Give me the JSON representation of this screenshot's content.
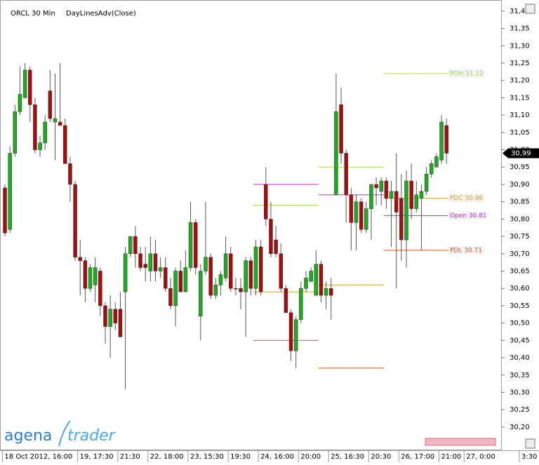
{
  "chart_data": {
    "type": "candlestick",
    "title": "ORCL 30 Min",
    "indicator": "DayLinesAdv(Close)",
    "categories": [
      "18 Oct 2012, 16:00",
      null,
      null,
      null,
      null,
      null,
      null,
      null,
      null,
      null,
      null,
      null,
      null,
      null,
      null,
      "19, 17:30",
      null,
      null,
      null,
      null,
      null,
      null,
      null,
      "21:30",
      null,
      null,
      null,
      null,
      null,
      "22, 18:00",
      null,
      null,
      null,
      null,
      null,
      null,
      null,
      "23, 15:30",
      null,
      null,
      null,
      null,
      null,
      null,
      null,
      "19:30",
      null,
      null,
      null,
      null,
      null,
      "24, 16:00",
      null,
      null,
      null,
      null,
      null,
      null,
      null,
      "20:00",
      null,
      null,
      null,
      null,
      null,
      "25, 16:30",
      null,
      null,
      null,
      null,
      null,
      null,
      null,
      "20:30",
      null,
      null,
      null,
      null,
      null,
      "26, 17:00",
      null,
      null,
      null,
      null,
      null,
      null,
      null,
      "21:00",
      null,
      null,
      null,
      null,
      "27, 0:00",
      null,
      null,
      null,
      null,
      null,
      null,
      null,
      null,
      null,
      null,
      "3:30"
    ],
    "open": [
      30.89,
      30.77,
      30.99,
      31.11,
      31.15,
      31.23,
      31.13,
      31.0,
      31.02,
      31.17,
      31.08,
      31.08,
      31.07,
      30.96,
      30.9,
      30.69,
      30.68,
      30.6,
      30.61,
      30.65,
      30.55,
      30.49,
      30.54,
      30.54,
      30.59,
      30.7,
      30.75,
      30.7,
      30.67,
      30.65,
      30.7,
      30.65,
      30.66,
      30.6,
      30.55,
      30.65,
      30.59,
      30.66,
      30.79,
      30.52,
      30.65,
      30.69,
      30.58,
      30.61,
      30.63,
      30.7,
      30.6,
      30.6,
      30.59,
      30.68,
      30.6,
      30.72,
      30.9,
      30.8,
      30.74,
      30.7,
      30.6,
      30.53,
      30.42,
      30.51,
      30.6,
      30.62,
      30.58,
      30.67,
      30.58,
      30.6,
      30.87,
      31.13,
      30.99,
      30.87,
      30.79,
      30.85,
      30.77,
      30.83,
      30.9,
      30.88,
      30.91,
      30.86,
      30.88,
      30.86,
      30.74,
      30.91,
      30.83,
      30.86,
      30.88,
      30.93,
      30.95,
      30.97,
      31.07,
      null,
      null,
      null,
      null,
      null,
      null,
      null,
      null,
      null,
      null,
      null,
      null,
      null,
      null,
      null
    ],
    "high": [
      30.9,
      31.01,
      31.13,
      31.24,
      31.25,
      31.24,
      31.15,
      31.04,
      31.1,
      31.23,
      31.22,
      31.25,
      31.09,
      30.98,
      30.91,
      30.74,
      30.69,
      30.67,
      30.69,
      30.66,
      30.56,
      30.58,
      30.56,
      30.59,
      30.72,
      30.75,
      30.78,
      30.72,
      30.72,
      30.75,
      30.74,
      30.69,
      30.69,
      30.63,
      30.66,
      30.68,
      30.71,
      30.85,
      30.8,
      30.67,
      30.85,
      30.7,
      30.63,
      30.65,
      30.75,
      30.72,
      30.63,
      30.63,
      30.69,
      30.69,
      30.74,
      30.74,
      30.95,
      30.85,
      30.78,
      30.73,
      30.61,
      30.54,
      30.52,
      30.62,
      30.65,
      30.66,
      30.71,
      30.68,
      30.62,
      30.63,
      31.22,
      31.18,
      31.0,
      30.89,
      30.87,
      30.86,
      30.85,
      30.9,
      30.92,
      30.92,
      30.92,
      30.91,
      30.99,
      30.93,
      30.94,
      30.96,
      30.91,
      30.9,
      30.95,
      30.97,
      30.99,
      31.1,
      31.09,
      null,
      null,
      null,
      null,
      null,
      null,
      null,
      null,
      null,
      null,
      null,
      null,
      null,
      null,
      null
    ],
    "low": [
      30.75,
      30.76,
      30.98,
      31.1,
      31.15,
      31.08,
      30.99,
      30.98,
      31.0,
      31.08,
      30.97,
      31.07,
      30.96,
      30.85,
      30.68,
      30.58,
      30.56,
      30.59,
      30.56,
      30.52,
      30.44,
      30.4,
      30.48,
      30.46,
      30.31,
      30.69,
      30.66,
      30.65,
      30.62,
      30.62,
      30.62,
      30.63,
      30.59,
      30.54,
      30.49,
      30.59,
      30.59,
      30.65,
      30.64,
      30.45,
      30.64,
      30.57,
      30.57,
      30.58,
      30.62,
      30.59,
      30.58,
      30.54,
      30.46,
      30.58,
      30.58,
      30.58,
      30.78,
      30.69,
      30.69,
      30.59,
      30.53,
      30.39,
      30.37,
      30.5,
      30.59,
      30.62,
      30.58,
      30.56,
      30.54,
      30.51,
      30.87,
      30.96,
      30.79,
      30.71,
      30.71,
      30.76,
      30.76,
      30.74,
      30.84,
      30.84,
      30.83,
      30.72,
      30.6,
      30.68,
      30.66,
      30.8,
      30.82,
      30.71,
      30.87,
      30.92,
      30.95,
      30.96,
      30.96,
      null,
      null,
      null,
      null,
      null,
      null,
      null,
      null,
      null,
      null,
      null,
      null,
      null,
      null,
      null
    ],
    "close": [
      30.76,
      30.99,
      31.11,
      31.16,
      31.23,
      31.13,
      31.0,
      31.02,
      31.08,
      31.09,
      31.09,
      31.07,
      30.96,
      30.9,
      30.69,
      30.68,
      30.6,
      30.66,
      30.66,
      30.55,
      30.49,
      30.54,
      30.5,
      30.46,
      30.7,
      30.75,
      30.7,
      30.66,
      30.66,
      30.7,
      30.65,
      30.66,
      30.6,
      30.55,
      30.65,
      30.59,
      30.66,
      30.79,
      30.66,
      30.65,
      30.69,
      30.58,
      30.61,
      30.64,
      30.7,
      30.6,
      30.6,
      30.59,
      30.68,
      30.6,
      30.72,
      30.59,
      30.8,
      30.7,
      30.7,
      30.6,
      30.53,
      30.42,
      30.51,
      30.6,
      30.63,
      30.65,
      30.67,
      30.58,
      30.6,
      30.58,
      31.11,
      30.99,
      30.87,
      30.79,
      30.85,
      30.77,
      30.83,
      30.9,
      30.89,
      30.91,
      30.86,
      30.88,
      30.82,
      30.74,
      30.91,
      30.83,
      30.87,
      30.88,
      30.93,
      30.96,
      30.98,
      31.08,
      30.99,
      null,
      null,
      null,
      null,
      null,
      null,
      null,
      null,
      null,
      null,
      null,
      null,
      null,
      null,
      null
    ],
    "up_color": "#1faa1f",
    "down_color": "#a30f0f",
    "levels": [
      {
        "label": "PDH 31.22",
        "color": "#a2dc4a",
        "values": [
          null,
          null,
          null,
          null,
          null,
          null,
          null,
          null,
          null,
          null,
          null,
          null,
          null,
          null,
          null,
          null,
          null,
          null,
          null,
          null,
          null,
          null,
          null,
          null,
          null,
          null,
          null,
          null,
          null,
          null,
          null,
          null,
          null,
          null,
          null,
          null,
          null,
          null,
          null,
          null,
          null,
          null,
          null,
          null,
          null,
          null,
          null,
          null,
          null,
          null,
          30.84,
          30.84,
          30.84,
          30.84,
          30.84,
          30.84,
          30.84,
          30.84,
          30.84,
          30.84,
          30.84,
          30.84,
          30.84,
          30.95,
          30.95,
          30.95,
          30.95,
          30.95,
          30.95,
          30.95,
          30.95,
          30.95,
          30.95,
          30.95,
          30.95,
          30.95,
          31.22,
          31.22,
          31.22,
          31.22,
          31.22,
          31.22,
          31.22,
          31.22,
          31.22,
          31.22,
          31.22,
          31.22,
          31.22,
          null,
          null,
          null,
          null,
          null,
          null,
          null,
          null,
          null,
          null,
          null,
          null,
          null,
          null,
          null
        ]
      },
      {
        "label": "PDC 30.86",
        "color": "#d8a22a",
        "values": [
          null,
          null,
          null,
          null,
          null,
          null,
          null,
          null,
          null,
          null,
          null,
          null,
          null,
          null,
          null,
          null,
          null,
          null,
          null,
          null,
          null,
          null,
          null,
          null,
          null,
          null,
          null,
          null,
          null,
          null,
          null,
          null,
          null,
          null,
          null,
          null,
          null,
          null,
          null,
          null,
          null,
          null,
          null,
          null,
          null,
          null,
          null,
          null,
          null,
          null,
          30.59,
          30.59,
          30.59,
          30.59,
          30.59,
          30.59,
          30.59,
          30.59,
          30.59,
          30.59,
          30.59,
          30.59,
          30.59,
          30.61,
          30.61,
          30.61,
          30.61,
          30.61,
          30.61,
          30.61,
          30.61,
          30.61,
          30.61,
          30.61,
          30.61,
          30.61,
          30.86,
          30.86,
          30.86,
          30.86,
          30.86,
          30.86,
          30.86,
          30.86,
          30.86,
          30.86,
          30.86,
          30.86,
          30.86,
          null,
          null,
          null,
          null,
          null,
          null,
          null,
          null,
          null,
          null,
          null,
          null,
          null,
          null,
          null
        ]
      },
      {
        "label": "Open 30.81",
        "color": "#d81ed8",
        "values": [
          null,
          null,
          null,
          null,
          null,
          null,
          null,
          null,
          null,
          null,
          null,
          null,
          null,
          null,
          null,
          null,
          null,
          null,
          null,
          null,
          null,
          null,
          null,
          null,
          null,
          null,
          null,
          null,
          null,
          null,
          null,
          null,
          null,
          null,
          null,
          null,
          null,
          null,
          null,
          null,
          null,
          null,
          null,
          null,
          null,
          null,
          null,
          null,
          null,
          null,
          30.9,
          30.9,
          30.9,
          30.9,
          30.9,
          30.9,
          30.9,
          30.9,
          30.9,
          30.9,
          30.9,
          30.9,
          30.9,
          30.87,
          30.87,
          30.87,
          30.87,
          30.87,
          30.87,
          30.87,
          30.87,
          30.87,
          30.87,
          30.87,
          30.87,
          30.87,
          30.81,
          30.81,
          30.81,
          30.81,
          30.81,
          30.81,
          30.81,
          30.81,
          30.81,
          30.81,
          30.81,
          30.81,
          30.81,
          null,
          null,
          null,
          null,
          null,
          null,
          null,
          null,
          null,
          null,
          null,
          null,
          null,
          null,
          null
        ]
      },
      {
        "label": "PDL 30.71",
        "color": "#e0541a",
        "values": [
          null,
          null,
          null,
          null,
          null,
          null,
          null,
          null,
          null,
          null,
          null,
          null,
          null,
          null,
          null,
          null,
          null,
          null,
          null,
          null,
          null,
          null,
          null,
          null,
          null,
          null,
          null,
          null,
          null,
          null,
          null,
          null,
          null,
          null,
          null,
          null,
          null,
          null,
          null,
          null,
          null,
          null,
          null,
          null,
          null,
          null,
          null,
          null,
          null,
          null,
          30.45,
          30.45,
          30.45,
          30.45,
          30.45,
          30.45,
          30.45,
          30.45,
          30.45,
          30.45,
          30.45,
          30.45,
          30.45,
          30.37,
          30.37,
          30.37,
          30.37,
          30.37,
          30.37,
          30.37,
          30.37,
          30.37,
          30.37,
          30.37,
          30.37,
          30.37,
          30.71,
          30.71,
          30.71,
          30.71,
          30.71,
          30.71,
          30.71,
          30.71,
          30.71,
          30.71,
          30.71,
          30.71,
          30.71,
          null,
          null,
          null,
          null,
          null,
          null,
          null,
          null,
          null,
          null,
          null,
          null,
          null,
          null,
          null
        ]
      }
    ],
    "last_price": {
      "value": 30.99,
      "label": "30,99"
    },
    "ylim": [
      30.135,
      31.422
    ],
    "yticks": [
      {
        "value": 30.2,
        "label": "30,20"
      },
      {
        "value": 30.25,
        "label": "30,25"
      },
      {
        "value": 30.3,
        "label": "30,30"
      },
      {
        "value": 30.35,
        "label": "30,35"
      },
      {
        "value": 30.4,
        "label": "30,40"
      },
      {
        "value": 30.45,
        "label": "30,45"
      },
      {
        "value": 30.5,
        "label": "30,50"
      },
      {
        "value": 30.55,
        "label": "30,55"
      },
      {
        "value": 30.6,
        "label": "30,60"
      },
      {
        "value": 30.65,
        "label": "30,65"
      },
      {
        "value": 30.7,
        "label": "30,70"
      },
      {
        "value": 30.75,
        "label": "30,75"
      },
      {
        "value": 30.8,
        "label": "30,80"
      },
      {
        "value": 30.85,
        "label": "30,85"
      },
      {
        "value": 30.9,
        "label": "30,90"
      },
      {
        "value": 30.95,
        "label": "30,95"
      },
      {
        "value": 31.0,
        "label": "31,00"
      },
      {
        "value": 31.05,
        "label": "31,05"
      },
      {
        "value": 31.1,
        "label": "31,10"
      },
      {
        "value": 31.15,
        "label": "31,15"
      },
      {
        "value": 31.2,
        "label": "31,20"
      },
      {
        "value": 31.25,
        "label": "31,25"
      },
      {
        "value": 31.3,
        "label": "31,30"
      },
      {
        "value": 31.35,
        "label": "31,35"
      },
      {
        "value": 31.4,
        "label": "31,4"
      }
    ]
  },
  "logo": [
    "agena",
    "trader"
  ]
}
